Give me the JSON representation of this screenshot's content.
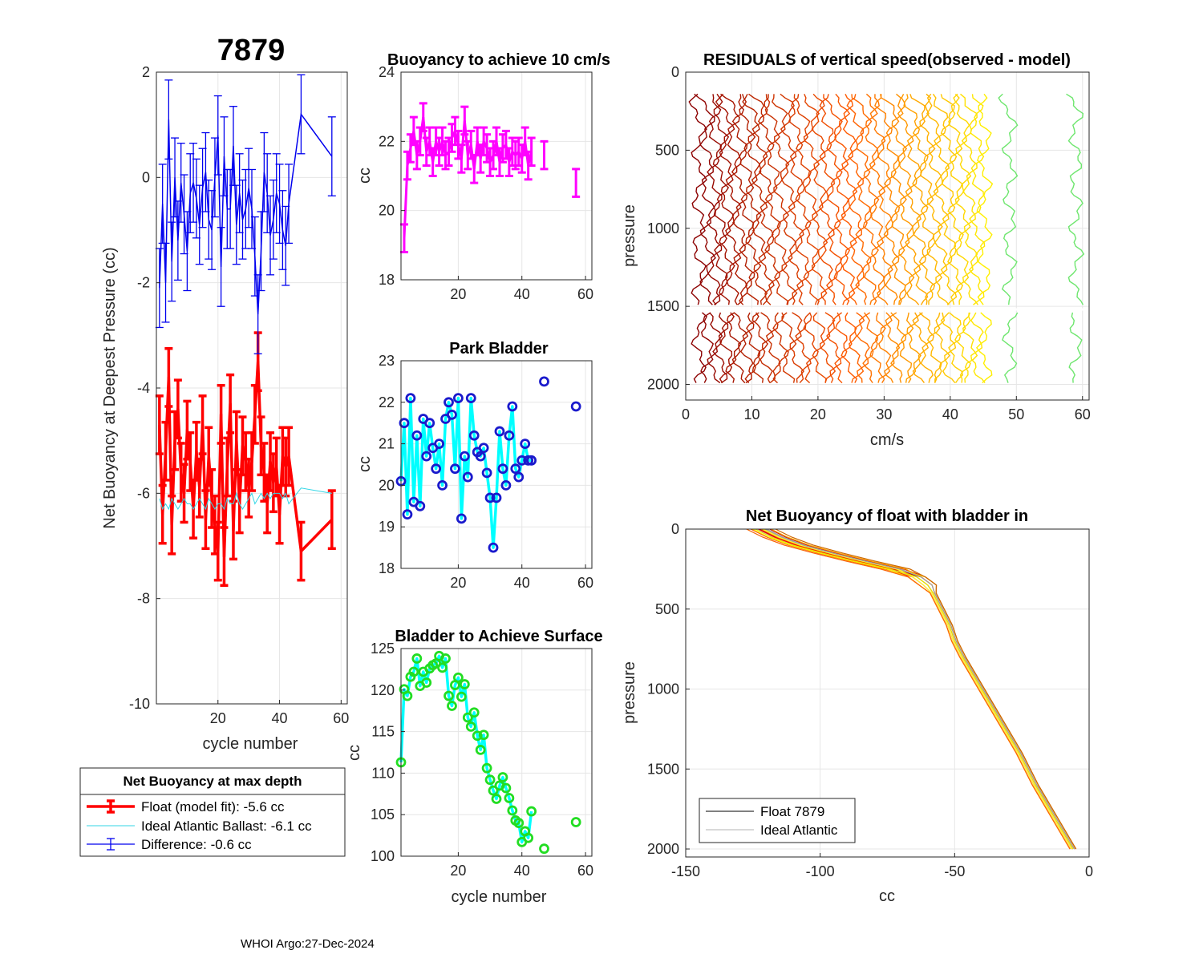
{
  "figure": {
    "float_id": "7879",
    "footer": "WHOI Argo:27-Dec-2024",
    "colors": {
      "float": "#ff0000",
      "ideal": "#33d6e6",
      "difference": "#0000ee",
      "magenta": "#ff00ff",
      "park_marker": "#1a1acc",
      "park_line": "#00ffff",
      "surface_marker": "#22dd22",
      "surface_line": "#00ffff"
    }
  },
  "chart_data": [
    {
      "id": "net_buoyancy",
      "type": "line",
      "title": "7879",
      "xlabel": "cycle number",
      "ylabel": "Net Buoyancy at Deepest Pressure (cc)",
      "xlim": [
        0,
        62
      ],
      "ylim": [
        -10,
        2
      ],
      "xticks": [
        20,
        40,
        60
      ],
      "yticks": [
        -10,
        -8,
        -6,
        -4,
        -2,
        0,
        2
      ],
      "x": [
        1,
        2,
        3,
        4,
        5,
        6,
        7,
        8,
        9,
        10,
        11,
        12,
        13,
        14,
        15,
        16,
        17,
        18,
        19,
        20,
        21,
        22,
        23,
        24,
        25,
        26,
        27,
        28,
        29,
        30,
        31,
        32,
        33,
        34,
        35,
        36,
        37,
        38,
        39,
        40,
        41,
        42,
        43,
        47,
        57
      ],
      "series": [
        {
          "name": "Float (model fit)",
          "err": 0.55,
          "values": [
            -4.7,
            -6.4,
            -5.2,
            -3.8,
            -6.6,
            -5.0,
            -4.4,
            -5.6,
            -6.0,
            -4.8,
            -5.4,
            -6.3,
            -5.2,
            -5.9,
            -4.7,
            -6.5,
            -5.3,
            -6.1,
            -6.6,
            -7.1,
            -4.5,
            -7.2,
            -5.5,
            -4.3,
            -6.7,
            -5.0,
            -6.2,
            -5.1,
            -5.4,
            -5.9,
            -5.4,
            -4.5,
            -3.5,
            -5.1,
            -5.6,
            -6.2,
            -5.4,
            -5.8,
            -5.5,
            -6.4,
            -5.3,
            -5.5,
            -5.3,
            -7.1,
            -6.5
          ]
        },
        {
          "name": "Ideal Atlantic Ballast",
          "values": [
            -6.1,
            -6.3,
            -6.2,
            -6.3,
            -6.1,
            -6.2,
            -6.3,
            -6.2,
            -6.1,
            -6.2,
            -6.2,
            -6.3,
            -6.2,
            -6.1,
            -6.2,
            -6.3,
            -6.1,
            -6.2,
            -6.3,
            -6.2,
            -6.2,
            -6.3,
            -6.1,
            -6.2,
            -6.2,
            -6.0,
            -6.2,
            -6.3,
            -6.2,
            -6.1,
            -6.0,
            -6.2,
            -6.1,
            -6.0,
            -6.1,
            -6.0,
            -6.1,
            -6.0,
            -6.0,
            -6.0,
            -6.1,
            -6.0,
            -6.2,
            -5.9,
            -6.0
          ]
        },
        {
          "name": "Difference",
          "err": 0.75,
          "values": [
            -2.1,
            -0.5,
            -2.0,
            1.1,
            -1.6,
            0.0,
            -1.2,
            -0.1,
            -0.7,
            -1.4,
            -0.3,
            -0.1,
            -0.4,
            -0.9,
            -0.2,
            0.1,
            -0.8,
            -1.0,
            0.0,
            0.8,
            -1.7,
            0.4,
            -0.6,
            -0.6,
            0.6,
            -0.9,
            -0.3,
            -0.8,
            -0.6,
            -0.2,
            -0.6,
            -1.5,
            -2.6,
            -1.4,
            0.1,
            -0.3,
            -1.1,
            -0.8,
            -0.3,
            -0.5,
            -1.0,
            -1.3,
            -0.5,
            1.2,
            0.4
          ]
        }
      ],
      "legend": {
        "title": "Net Buoyancy at max depth",
        "entries": [
          "Float (model fit):  -5.6 cc",
          "Ideal Atlantic Ballast:  -6.1 cc",
          "Difference:  -0.6 cc"
        ]
      }
    },
    {
      "id": "buoyancy_10cms",
      "type": "line",
      "title": "Buoyancy to achieve 10 cm/s",
      "xlabel": "",
      "ylabel": "cc",
      "xlim": [
        2,
        62
      ],
      "ylim": [
        18,
        24
      ],
      "xticks": [
        20,
        40,
        60
      ],
      "yticks": [
        18,
        20,
        22,
        24
      ],
      "x": [
        3,
        4,
        5,
        6,
        7,
        8,
        9,
        10,
        11,
        12,
        13,
        14,
        15,
        16,
        17,
        18,
        19,
        20,
        21,
        22,
        23,
        24,
        25,
        26,
        27,
        28,
        29,
        30,
        31,
        32,
        33,
        34,
        35,
        36,
        37,
        38,
        39,
        40,
        41,
        42,
        43,
        47,
        57
      ],
      "values": [
        19.2,
        21.3,
        21.8,
        22.3,
        21.6,
        22.0,
        22.7,
        21.7,
        22.0,
        21.4,
        22.0,
        21.7,
        22.0,
        21.6,
        21.7,
        22.1,
        22.3,
        21.9,
        21.5,
        22.6,
        21.6,
        21.9,
        21.2,
        22.0,
        21.5,
        22.0,
        21.8,
        21.4,
        21.6,
        22.0,
        21.4,
        21.8,
        21.9,
        21.4,
        21.7,
        21.6,
        21.7,
        21.5,
        22.0,
        21.3,
        21.7,
        21.6,
        20.8
      ],
      "err": 0.4
    },
    {
      "id": "park_bladder",
      "type": "line",
      "title": "Park Bladder",
      "xlabel": "",
      "ylabel": "cc",
      "xlim": [
        2,
        62
      ],
      "ylim": [
        18,
        23
      ],
      "xticks": [
        20,
        40,
        60
      ],
      "yticks": [
        18,
        19,
        20,
        21,
        22,
        23
      ],
      "x": [
        2,
        3,
        4,
        5,
        6,
        7,
        8,
        9,
        10,
        11,
        12,
        13,
        14,
        15,
        16,
        17,
        18,
        19,
        20,
        21,
        22,
        23,
        24,
        25,
        26,
        27,
        28,
        29,
        30,
        31,
        32,
        33,
        34,
        35,
        36,
        37,
        38,
        39,
        40,
        41,
        42,
        43,
        47,
        57
      ],
      "line_points": 42,
      "values": [
        20.1,
        21.5,
        19.3,
        22.1,
        19.6,
        21.2,
        19.5,
        21.6,
        20.7,
        21.5,
        20.9,
        20.4,
        21.0,
        20.0,
        21.6,
        22.0,
        21.7,
        20.4,
        22.1,
        19.2,
        20.7,
        20.2,
        22.1,
        21.2,
        20.8,
        20.7,
        20.9,
        20.3,
        19.7,
        18.5,
        19.7,
        21.3,
        20.4,
        20.0,
        21.2,
        21.9,
        20.4,
        20.2,
        20.6,
        21.0,
        20.6,
        20.6,
        22.5,
        21.9
      ]
    },
    {
      "id": "surface_bladder",
      "type": "line",
      "title": "Bladder to Achieve Surface",
      "xlabel": "cycle number",
      "ylabel": "cc",
      "xlim": [
        2,
        62
      ],
      "ylim": [
        100,
        125
      ],
      "xticks": [
        20,
        40,
        60
      ],
      "yticks": [
        100,
        105,
        110,
        115,
        120,
        125
      ],
      "x": [
        2,
        3,
        4,
        5,
        6,
        7,
        8,
        9,
        10,
        11,
        12,
        13,
        14,
        15,
        16,
        17,
        18,
        19,
        20,
        21,
        22,
        23,
        24,
        25,
        26,
        27,
        28,
        29,
        30,
        31,
        32,
        33,
        34,
        35,
        36,
        37,
        38,
        39,
        40,
        41,
        42,
        43,
        47,
        57
      ],
      "line_points": 42,
      "values": [
        111.3,
        120.1,
        119.3,
        121.6,
        122.2,
        123.8,
        120.5,
        122.2,
        120.9,
        122.6,
        123.0,
        123.2,
        124.1,
        122.7,
        123.8,
        119.3,
        118.1,
        120.6,
        121.5,
        119.2,
        120.7,
        116.7,
        115.6,
        117.3,
        114.5,
        112.8,
        114.6,
        110.6,
        109.2,
        107.9,
        106.9,
        108.5,
        109.5,
        108.2,
        107.0,
        105.5,
        104.3,
        104.0,
        101.7,
        103.0,
        102.2,
        105.4,
        100.9,
        104.1
      ]
    },
    {
      "id": "residuals",
      "type": "line",
      "title": "RESIDUALS of vertical speed(observed - model)",
      "xlabel": "cm/s",
      "ylabel": "pressure",
      "xlim": [
        0,
        61
      ],
      "ylim": [
        2100,
        0
      ],
      "xticks": [
        0,
        10,
        20,
        30,
        40,
        50,
        60
      ],
      "yticks": [
        0,
        500,
        1000,
        1500,
        2000
      ],
      "profile_offsets": [
        2,
        3.3,
        4.4,
        5.3,
        6.2,
        7.2,
        8.2,
        9.3,
        10.2,
        11.2,
        12.2,
        13.2,
        14.4,
        15.6,
        16.7,
        17.8,
        19.0,
        20.2,
        21.4,
        22.5,
        23.6,
        24.7,
        25.8,
        26.9,
        28.0,
        29.0,
        30.1,
        31.2,
        32.2,
        33.3,
        34.4,
        35.5,
        36.5,
        37.6,
        38.7,
        39.8,
        40.8,
        41.9,
        43.0,
        44.1,
        45.2,
        49,
        59
      ],
      "pressure_range": [
        140,
        2000
      ],
      "wiggle_amplitude_cms": 1.2,
      "gap_pressure": 1520
    },
    {
      "id": "net_buoyancy_profile",
      "type": "line",
      "title": "Net Buoyancy of float with bladder in",
      "xlabel": "cc",
      "ylabel": "pressure",
      "xlim": [
        -150,
        0
      ],
      "ylim": [
        2050,
        0
      ],
      "xticks": [
        -150,
        -100,
        -50,
        0
      ],
      "yticks": [
        0,
        500,
        1000,
        1500,
        2000
      ],
      "reference_curve": {
        "pressure": [
          0,
          50,
          100,
          150,
          200,
          250,
          300,
          350,
          400,
          500,
          600,
          700,
          800,
          1000,
          1200,
          1400,
          1600,
          1800,
          2000
        ],
        "cc": [
          -122,
          -116,
          -108,
          -97,
          -85,
          -72,
          -64,
          -60,
          -58,
          -55,
          -52,
          -50,
          -47,
          -40,
          -33,
          -26,
          -20,
          -13,
          -6
        ]
      },
      "legend": {
        "entries": [
          "Float 7879",
          "Ideal Atlantic"
        ]
      }
    }
  ]
}
